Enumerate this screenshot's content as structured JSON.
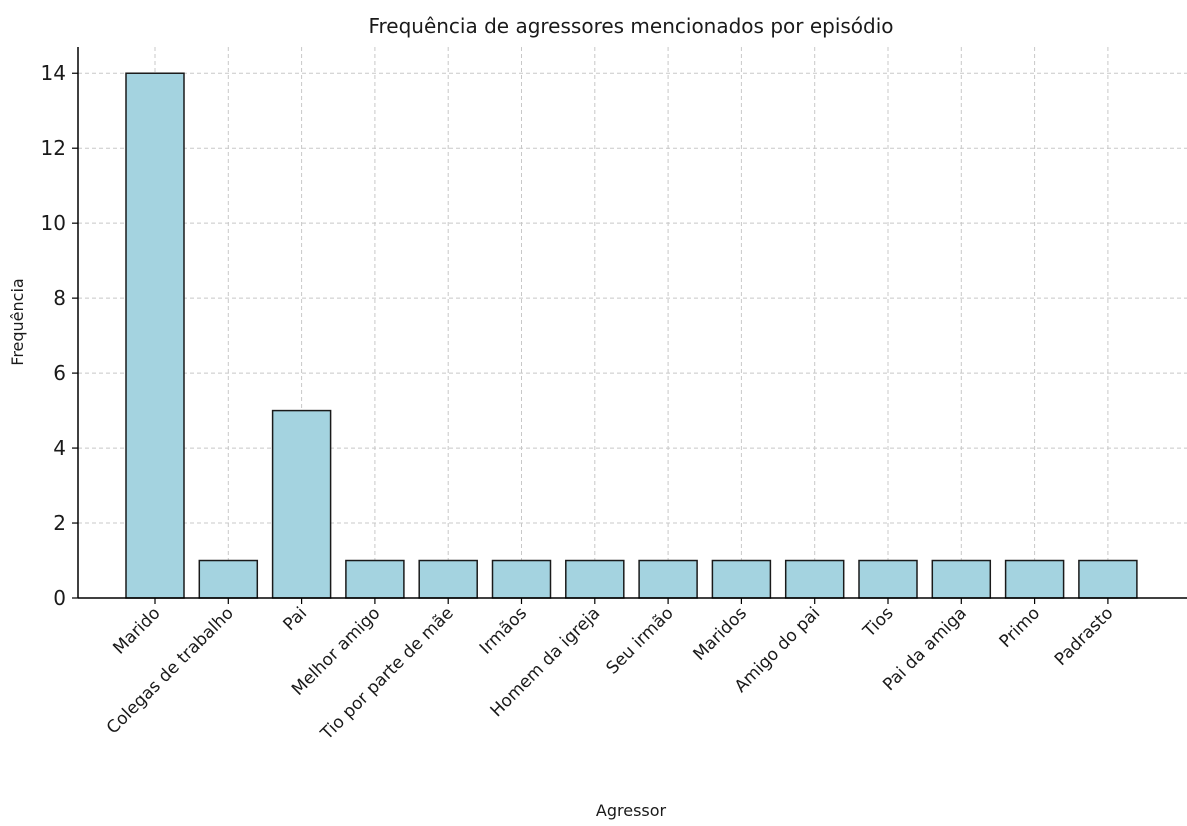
{
  "chart_data": {
    "type": "bar",
    "title": "Frequência de agressores mencionados por episódio",
    "xlabel": "Agressor",
    "ylabel": "Frequência",
    "categories": [
      "Marido",
      "Colegas de trabalho",
      "Pai",
      "Melhor amigo",
      "Tio por parte de mãe",
      "Irmãos",
      "Homem da igreja",
      "Seu irmão",
      "Maridos",
      "Amigo do pai",
      "Tios",
      "Pai da amiga",
      "Primo",
      "Padrasto"
    ],
    "values": [
      14,
      1,
      5,
      1,
      1,
      1,
      1,
      1,
      1,
      1,
      1,
      1,
      1,
      1
    ],
    "ylim": [
      0,
      14.7
    ],
    "yticks": [
      0,
      2,
      4,
      6,
      8,
      10,
      12,
      14
    ],
    "grid": true,
    "bar_color": "#a4d3e0",
    "bar_edge_color": "#1a1a1a",
    "grid_color": "#c8c8c8"
  }
}
